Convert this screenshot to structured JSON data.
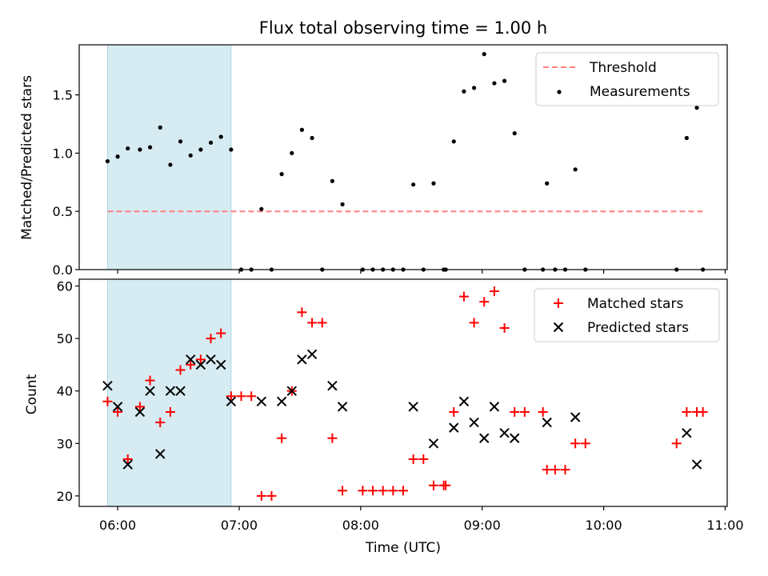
{
  "chart_data": [
    {
      "type": "scatter",
      "title": "Flux total observing time = 1.00 h",
      "xlabel": "",
      "ylabel": "Matched/Predicted stars",
      "ylim": [
        0,
        1.93
      ],
      "yticks": [
        "0.0",
        "0.5",
        "1.0",
        "1.5"
      ],
      "shaded_span": [
        "05:55",
        "06:56"
      ],
      "shaded_color": "#add8e6",
      "legend_position": "upper right",
      "threshold": {
        "name": "Threshold",
        "value": 0.5,
        "x_start": "05:55",
        "x_end": "10:49",
        "color": "#ff8080",
        "style": "dashed"
      },
      "series": [
        {
          "name": "Measurements",
          "color": "#000000",
          "points": [
            [
              "05:55",
              0.93
            ],
            [
              "06:00",
              0.97
            ],
            [
              "06:05",
              1.04
            ],
            [
              "06:11",
              1.03
            ],
            [
              "06:16",
              1.05
            ],
            [
              "06:21",
              1.22
            ],
            [
              "06:26",
              0.9
            ],
            [
              "06:31",
              1.1
            ],
            [
              "06:36",
              0.98
            ],
            [
              "06:41",
              1.03
            ],
            [
              "06:46",
              1.09
            ],
            [
              "06:51",
              1.14
            ],
            [
              "06:56",
              1.03
            ],
            [
              "07:01",
              0.0
            ],
            [
              "07:06",
              0.0
            ],
            [
              "07:11",
              0.52
            ],
            [
              "07:16",
              0.0
            ],
            [
              "07:21",
              0.82
            ],
            [
              "07:26",
              1.0
            ],
            [
              "07:31",
              1.2
            ],
            [
              "07:36",
              1.13
            ],
            [
              "07:41",
              0.0
            ],
            [
              "07:46",
              0.76
            ],
            [
              "07:51",
              0.56
            ],
            [
              "08:01",
              0.0
            ],
            [
              "08:06",
              0.0
            ],
            [
              "08:11",
              0.0
            ],
            [
              "08:16",
              0.0
            ],
            [
              "08:21",
              0.0
            ],
            [
              "08:26",
              0.73
            ],
            [
              "08:31",
              0.0
            ],
            [
              "08:36",
              0.74
            ],
            [
              "08:41",
              0.0
            ],
            [
              "08:42",
              0.0
            ],
            [
              "08:46",
              1.1
            ],
            [
              "08:51",
              1.53
            ],
            [
              "08:56",
              1.56
            ],
            [
              "09:01",
              1.85
            ],
            [
              "09:06",
              1.6
            ],
            [
              "09:11",
              1.62
            ],
            [
              "09:16",
              1.17
            ],
            [
              "09:21",
              0.0
            ],
            [
              "09:30",
              0.0
            ],
            [
              "09:32",
              0.74
            ],
            [
              "09:36",
              0.0
            ],
            [
              "09:41",
              0.0
            ],
            [
              "09:46",
              0.86
            ],
            [
              "09:51",
              0.0
            ],
            [
              "10:36",
              0.0
            ],
            [
              "10:41",
              1.13
            ],
            [
              "10:46",
              1.39
            ],
            [
              "10:49",
              0.0
            ]
          ]
        }
      ]
    },
    {
      "type": "scatter",
      "title": "",
      "xlabel": "Time (UTC)",
      "ylabel": "Count",
      "ylim": [
        18,
        61.3
      ],
      "yticks": [
        "20",
        "30",
        "40",
        "50",
        "60"
      ],
      "xticks": [
        "06:00",
        "07:00",
        "08:00",
        "09:00",
        "10:00",
        "11:00"
      ],
      "xlim": [
        "05:41",
        "11:01"
      ],
      "shaded_span": [
        "05:55",
        "06:56"
      ],
      "shaded_color": "#add8e6",
      "legend_position": "upper right",
      "series": [
        {
          "name": "Matched stars",
          "marker": "+",
          "color": "#ff0000",
          "points": [
            [
              "05:55",
              38
            ],
            [
              "06:00",
              36
            ],
            [
              "06:05",
              27
            ],
            [
              "06:11",
              37
            ],
            [
              "06:16",
              42
            ],
            [
              "06:21",
              34
            ],
            [
              "06:26",
              36
            ],
            [
              "06:31",
              44
            ],
            [
              "06:36",
              45
            ],
            [
              "06:41",
              46
            ],
            [
              "06:46",
              50
            ],
            [
              "06:51",
              51
            ],
            [
              "06:56",
              39
            ],
            [
              "07:01",
              39
            ],
            [
              "07:06",
              39
            ],
            [
              "07:11",
              20
            ],
            [
              "07:16",
              20
            ],
            [
              "07:21",
              31
            ],
            [
              "07:26",
              40
            ],
            [
              "07:31",
              55
            ],
            [
              "07:36",
              53
            ],
            [
              "07:41",
              53
            ],
            [
              "07:46",
              31
            ],
            [
              "07:51",
              21
            ],
            [
              "08:01",
              21
            ],
            [
              "08:06",
              21
            ],
            [
              "08:11",
              21
            ],
            [
              "08:16",
              21
            ],
            [
              "08:21",
              21
            ],
            [
              "08:26",
              27
            ],
            [
              "08:31",
              27
            ],
            [
              "08:36",
              22
            ],
            [
              "08:41",
              22
            ],
            [
              "08:42",
              22
            ],
            [
              "08:46",
              36
            ],
            [
              "08:51",
              58
            ],
            [
              "08:56",
              53
            ],
            [
              "09:01",
              57
            ],
            [
              "09:06",
              59
            ],
            [
              "09:11",
              52
            ],
            [
              "09:16",
              36
            ],
            [
              "09:21",
              36
            ],
            [
              "09:30",
              36
            ],
            [
              "09:32",
              25
            ],
            [
              "09:36",
              25
            ],
            [
              "09:41",
              25
            ],
            [
              "09:46",
              30
            ],
            [
              "09:51",
              30
            ],
            [
              "10:36",
              30
            ],
            [
              "10:41",
              36
            ],
            [
              "10:46",
              36
            ],
            [
              "10:49",
              36
            ]
          ]
        },
        {
          "name": "Predicted stars",
          "marker": "x",
          "color": "#000000",
          "points": [
            [
              "05:55",
              41
            ],
            [
              "06:00",
              37
            ],
            [
              "06:05",
              26
            ],
            [
              "06:11",
              36
            ],
            [
              "06:16",
              40
            ],
            [
              "06:21",
              28
            ],
            [
              "06:26",
              40
            ],
            [
              "06:31",
              40
            ],
            [
              "06:36",
              46
            ],
            [
              "06:41",
              45
            ],
            [
              "06:46",
              46
            ],
            [
              "06:51",
              45
            ],
            [
              "06:56",
              38
            ],
            [
              "07:11",
              38
            ],
            [
              "07:21",
              38
            ],
            [
              "07:26",
              40
            ],
            [
              "07:31",
              46
            ],
            [
              "07:36",
              47
            ],
            [
              "07:46",
              41
            ],
            [
              "07:51",
              37
            ],
            [
              "08:26",
              37
            ],
            [
              "08:36",
              30
            ],
            [
              "08:46",
              33
            ],
            [
              "08:51",
              38
            ],
            [
              "08:56",
              34
            ],
            [
              "09:01",
              31
            ],
            [
              "09:06",
              37
            ],
            [
              "09:11",
              32
            ],
            [
              "09:16",
              31
            ],
            [
              "09:32",
              34
            ],
            [
              "09:46",
              35
            ],
            [
              "10:41",
              32
            ],
            [
              "10:46",
              26
            ]
          ]
        }
      ]
    }
  ]
}
